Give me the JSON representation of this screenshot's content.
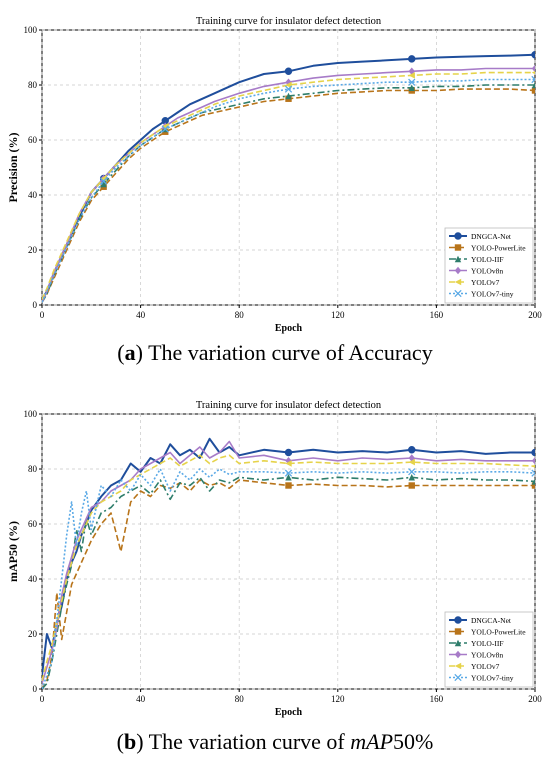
{
  "captions": [
    {
      "label": "a",
      "text": "The variation curve of Accuracy"
    },
    {
      "label": "b",
      "text_italic": "mAP",
      "text": "The variation curve of ",
      "text_suffix": "50%"
    }
  ],
  "chart_data": [
    {
      "type": "line",
      "title": "Training curve for insulator defect detection",
      "xlabel": "Epoch",
      "ylabel": "Precision (%)",
      "xlim": [
        0,
        200
      ],
      "ylim": [
        0,
        100
      ],
      "xticks": [
        0,
        40,
        80,
        120,
        160,
        200
      ],
      "yticks": [
        0,
        20,
        40,
        60,
        80,
        100
      ],
      "grid": true,
      "legend": "lower-right",
      "x": [
        0,
        2,
        5,
        10,
        15,
        20,
        25,
        30,
        35,
        40,
        45,
        50,
        55,
        60,
        65,
        70,
        80,
        90,
        100,
        110,
        120,
        130,
        140,
        150,
        160,
        170,
        180,
        190,
        200
      ],
      "series": [
        {
          "name": "DNGCA-Net",
          "color": "#1f4e9c",
          "dash": "",
          "marker": "circle",
          "lw": 2.0,
          "values": [
            2,
            5,
            12,
            22,
            32,
            41,
            46,
            51,
            56,
            60,
            64,
            67,
            70,
            73,
            75,
            77,
            81,
            84,
            85,
            87,
            88,
            88.5,
            89,
            89.5,
            90,
            90.3,
            90.5,
            90.7,
            91
          ]
        },
        {
          "name": "YOLO-PowerLite",
          "color": "#b8741a",
          "dash": "6,3",
          "marker": "square",
          "lw": 1.6,
          "values": [
            1,
            4,
            10,
            20,
            30,
            38,
            43,
            48,
            53,
            57,
            60,
            63,
            65,
            67,
            69,
            70,
            72,
            74,
            75,
            76,
            77,
            77.5,
            78,
            78,
            78,
            78.5,
            78.5,
            78.5,
            78
          ]
        },
        {
          "name": "YOLO-IIF",
          "color": "#2e7d6b",
          "dash": "7,3,2,3",
          "marker": "triangle",
          "lw": 1.6,
          "values": [
            1,
            4,
            11,
            21,
            31,
            39,
            44,
            49,
            54,
            58,
            61,
            64,
            66,
            68,
            70,
            71,
            73,
            75,
            76,
            77,
            78,
            78.5,
            79,
            79,
            79.5,
            79.5,
            80,
            80,
            80
          ]
        },
        {
          "name": "YOLOv8n",
          "color": "#a77bc8",
          "dash": "",
          "marker": "diamond",
          "lw": 1.6,
          "values": [
            1,
            5,
            12,
            22,
            33,
            41,
            46,
            51,
            55,
            59,
            62,
            65,
            68,
            70,
            72,
            74,
            77,
            79.5,
            81,
            82.5,
            83.5,
            84,
            84.5,
            85,
            85.5,
            85.5,
            86,
            86,
            86
          ]
        },
        {
          "name": "YOLOv7",
          "color": "#e6d34a",
          "dash": "6,3",
          "marker": "triangle-left",
          "lw": 1.6,
          "values": [
            2,
            6,
            13,
            23,
            33,
            41,
            46,
            51,
            55,
            59,
            62,
            65,
            67,
            69,
            71,
            73,
            76,
            78,
            80,
            81,
            82,
            82.5,
            83,
            83.5,
            84,
            84,
            84.5,
            84.5,
            84.5
          ]
        },
        {
          "name": "YOLOv7-tiny",
          "color": "#5aa9e6",
          "dash": "2,2",
          "marker": "x",
          "lw": 1.6,
          "values": [
            1,
            5,
            11,
            21,
            31,
            39,
            45,
            50,
            54,
            58,
            61,
            64,
            66,
            68,
            70,
            72,
            75,
            77,
            78.5,
            79.5,
            80,
            80.5,
            81,
            81,
            81.5,
            81.5,
            82,
            82,
            82
          ]
        }
      ]
    },
    {
      "type": "line",
      "title": "Training curve for insulator defect detection",
      "xlabel": "Epoch",
      "ylabel": "mAP50 (%)",
      "xlim": [
        0,
        200
      ],
      "ylim": [
        0,
        100
      ],
      "xticks": [
        0,
        40,
        80,
        120,
        160,
        200
      ],
      "yticks": [
        0,
        20,
        40,
        60,
        80,
        100
      ],
      "grid": true,
      "legend": "lower-right",
      "x": [
        0,
        2,
        4,
        6,
        8,
        10,
        12,
        14,
        16,
        18,
        20,
        24,
        28,
        32,
        36,
        40,
        44,
        48,
        52,
        56,
        60,
        64,
        68,
        72,
        76,
        80,
        90,
        100,
        110,
        120,
        130,
        140,
        150,
        160,
        170,
        180,
        190,
        200
      ],
      "series": [
        {
          "name": "DNGCA-Net",
          "color": "#1f4e9c",
          "dash": "",
          "marker": "circle",
          "lw": 2.0,
          "values": [
            5,
            20,
            15,
            24,
            30,
            40,
            46,
            50,
            56,
            60,
            65,
            70,
            74,
            76,
            82,
            79,
            84,
            82,
            89,
            85,
            87,
            84,
            91,
            86,
            88,
            85,
            87,
            86,
            87,
            86,
            86.5,
            86,
            87,
            86,
            86.5,
            85.5,
            86,
            86
          ]
        },
        {
          "name": "YOLO-PowerLite",
          "color": "#b8741a",
          "dash": "6,3",
          "marker": "square",
          "lw": 1.6,
          "values": [
            0,
            3,
            12,
            35,
            18,
            28,
            38,
            42,
            46,
            50,
            54,
            60,
            64,
            50,
            68,
            72,
            70,
            74,
            73,
            75,
            72,
            76,
            74,
            75,
            73,
            76,
            75,
            74,
            74.5,
            74,
            74,
            73.5,
            74,
            74,
            74,
            74,
            74,
            74
          ]
        },
        {
          "name": "YOLO-IIF",
          "color": "#2e7d6b",
          "dash": "7,3,2,3",
          "marker": "triangle",
          "lw": 1.6,
          "values": [
            0,
            2,
            10,
            20,
            30,
            38,
            45,
            58,
            50,
            62,
            56,
            64,
            66,
            70,
            72,
            74,
            71,
            76,
            69,
            75,
            74,
            77,
            72,
            76,
            75,
            77,
            76,
            77,
            76,
            77,
            76.5,
            76,
            77,
            76,
            76.5,
            76,
            76,
            75.5
          ]
        },
        {
          "name": "YOLOv8n",
          "color": "#a77bc8",
          "dash": "",
          "marker": "diamond",
          "lw": 1.6,
          "values": [
            2,
            8,
            14,
            22,
            34,
            42,
            48,
            54,
            58,
            62,
            66,
            68,
            72,
            74,
            76,
            80,
            82,
            84,
            86,
            82,
            85,
            88,
            84,
            86,
            90,
            84,
            85,
            83,
            84,
            83,
            84,
            83.5,
            84,
            83,
            83.5,
            83,
            83,
            83
          ]
        },
        {
          "name": "YOLOv7",
          "color": "#e6d34a",
          "dash": "6,3",
          "marker": "triangle-left",
          "lw": 1.6,
          "values": [
            3,
            10,
            16,
            24,
            32,
            40,
            46,
            52,
            56,
            60,
            64,
            68,
            70,
            72,
            76,
            78,
            80,
            82,
            84,
            81,
            83,
            85,
            82,
            84,
            85,
            82,
            83,
            82,
            82.5,
            82,
            82,
            82,
            82.5,
            82,
            82,
            82,
            81.5,
            81
          ]
        },
        {
          "name": "YOLOv7-tiny",
          "color": "#5aa9e6",
          "dash": "2,2",
          "marker": "x",
          "lw": 1.6,
          "values": [
            0,
            5,
            10,
            25,
            40,
            56,
            68,
            52,
            64,
            72,
            58,
            74,
            70,
            76,
            72,
            78,
            74,
            80,
            72,
            79,
            76,
            80,
            77,
            80,
            78,
            79,
            79,
            78.5,
            79,
            78.5,
            79,
            78.5,
            79,
            79,
            78.5,
            79,
            79,
            78.5
          ]
        }
      ]
    }
  ]
}
